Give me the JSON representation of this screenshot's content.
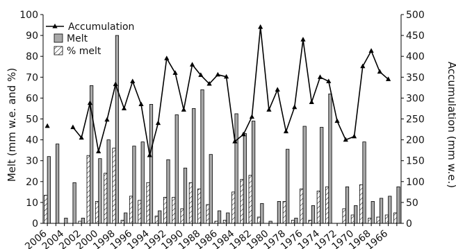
{
  "chart_data": {
    "type": "bar",
    "title": "",
    "ylabel": "Melt (mm w.e. and %)",
    "y2label": "Accumulation (mm w.e.)",
    "ylim": [
      0,
      100
    ],
    "y2lim": [
      0,
      500
    ],
    "yticks": [
      0,
      10,
      20,
      30,
      40,
      50,
      60,
      70,
      80,
      90,
      100
    ],
    "y2ticks": [
      0,
      50,
      100,
      150,
      200,
      250,
      300,
      350,
      400,
      450,
      500
    ],
    "x_tick_labels": [
      "2006",
      "2004",
      "2002",
      "2000",
      "1998",
      "1996",
      "1994",
      "1992",
      "1990",
      "1988",
      "1986",
      "1984",
      "1982",
      "1980",
      "1978",
      "1976",
      "1974",
      "1972",
      "1970",
      "1968",
      "1966"
    ],
    "legend_position": "top-left",
    "series": [
      {
        "name": "Accumulation",
        "kind": "line",
        "axis": "right",
        "color": "#000000",
        "x": [
          2006,
          2003,
          2002,
          2001,
          2000,
          1999,
          1998,
          1997,
          1996,
          1995,
          1994,
          1993,
          1992,
          1991,
          1990,
          1989,
          1988,
          1987,
          1986,
          1985,
          1984,
          1983,
          1982,
          1981,
          1980,
          1979,
          1978,
          1977,
          1976,
          1975,
          1974,
          1973,
          1972,
          1971,
          1970,
          1969,
          1968,
          1967,
          1966,
          1965
        ],
        "values": [
          233,
          230,
          205,
          288,
          172,
          248,
          333,
          275,
          340,
          285,
          163,
          240,
          395,
          360,
          272,
          380,
          355,
          334,
          356,
          351,
          196,
          213,
          255,
          470,
          272,
          320,
          220,
          278,
          440,
          290,
          350,
          340,
          245,
          200,
          208,
          376,
          413,
          363,
          345,
          null
        ]
      },
      {
        "name": "Melt",
        "kind": "bar",
        "color": "#a9a9a9",
        "x": [
          2006,
          2005,
          2004,
          2003,
          2002,
          2001,
          2000,
          1999,
          1998,
          1997,
          1996,
          1995,
          1994,
          1993,
          1992,
          1991,
          1990,
          1989,
          1988,
          1987,
          1986,
          1985,
          1984,
          1983,
          1982,
          1981,
          1980,
          1979,
          1978,
          1977,
          1976,
          1975,
          1974,
          1973,
          1972,
          1971,
          1970,
          1969,
          1968,
          1967,
          1966,
          1965
        ],
        "values": [
          32,
          38,
          2.5,
          19.5,
          2.5,
          66,
          31,
          40,
          90,
          5,
          37,
          39,
          57,
          6,
          30.5,
          52,
          26.5,
          55,
          64,
          33,
          6,
          5,
          52.5,
          43,
          49,
          9.5,
          1,
          10.5,
          35.5,
          2.5,
          46.5,
          8.5,
          46,
          62,
          0,
          17.5,
          8.5,
          39,
          10.5,
          12,
          13,
          17.5
        ]
      },
      {
        "name": "% melt",
        "kind": "bar",
        "hatch": true,
        "color": "#ffffff",
        "x": [
          2006,
          2005,
          2004,
          2003,
          2002,
          2001,
          2000,
          1999,
          1998,
          1997,
          1996,
          1995,
          1994,
          1993,
          1992,
          1991,
          1990,
          1989,
          1988,
          1987,
          1986,
          1985,
          1984,
          1983,
          1982,
          1981,
          1980,
          1979,
          1978,
          1977,
          1976,
          1975,
          1974,
          1973,
          1972,
          1971,
          1970,
          1969,
          1968,
          1967,
          1966,
          1965
        ],
        "values": [
          13.5,
          0,
          0,
          0,
          1,
          32.5,
          10.5,
          24,
          36,
          1.5,
          13,
          11,
          19.5,
          3.5,
          12.5,
          12.5,
          7,
          19.5,
          16.5,
          9,
          1,
          1.5,
          15,
          21,
          23,
          3,
          0,
          0,
          10.5,
          1.5,
          16.5,
          1.5,
          15.5,
          17.5,
          0,
          7,
          4,
          18.5,
          2.5,
          3,
          4,
          5
        ]
      }
    ]
  }
}
